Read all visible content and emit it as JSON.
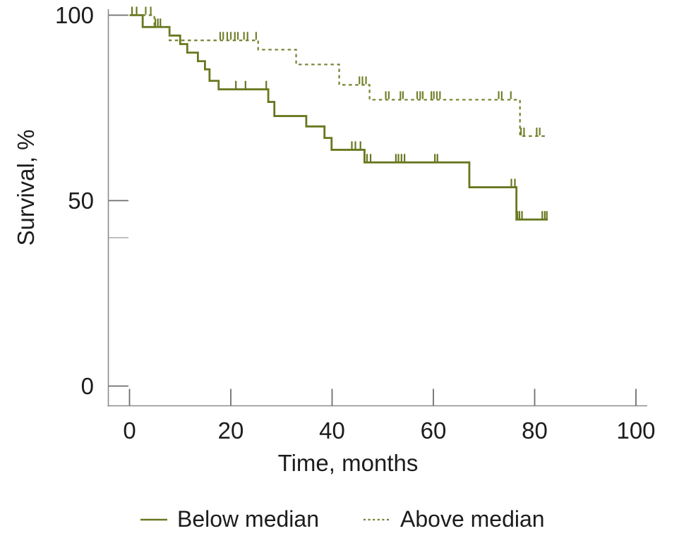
{
  "chart_data": {
    "type": "line",
    "subtype": "kaplan-meier-step-curves",
    "title": "",
    "xlabel": "Time, months",
    "ylabel": "Survival, %",
    "xlim": [
      0,
      100
    ],
    "ylim": [
      0,
      100
    ],
    "xticks": [
      0,
      20,
      40,
      60,
      80,
      100
    ],
    "yticks": [
      0,
      50,
      100
    ],
    "minor_yticks": [
      40
    ],
    "grid": false,
    "legend_position": "bottom",
    "colors": {
      "solid_curve": "#67781f",
      "dashed_curve": "#72812c",
      "axis_line": "#8a8a8a",
      "major_tick": "#6e6e6e",
      "minor_tick": "#b5b5b5",
      "text": "#1c1c1c"
    },
    "series": [
      {
        "name": "Below median",
        "style": "solid",
        "color": "#67781f",
        "steps": [
          [
            0,
            100
          ],
          [
            2.6,
            96.8
          ],
          [
            7.9,
            94.5
          ],
          [
            10.0,
            92.2
          ],
          [
            11.4,
            89.9
          ],
          [
            13.5,
            87.6
          ],
          [
            14.9,
            85.4
          ],
          [
            15.8,
            82.3
          ],
          [
            17.6,
            80.0
          ],
          [
            27.4,
            76.6
          ],
          [
            28.6,
            72.8
          ],
          [
            34.9,
            70.0
          ],
          [
            38.5,
            66.9
          ],
          [
            39.9,
            63.7
          ],
          [
            46.4,
            60.3
          ],
          [
            67.1,
            53.6
          ],
          [
            76.4,
            44.9
          ]
        ],
        "end_time": 82.6,
        "censors": [
          [
            0.5,
            100
          ],
          [
            1.4,
            100
          ],
          [
            5.1,
            96.8
          ],
          [
            5.6,
            96.8
          ],
          [
            6.1,
            96.8
          ],
          [
            21.0,
            80.0
          ],
          [
            22.9,
            80.0
          ],
          [
            27.0,
            80.0
          ],
          [
            43.9,
            63.7
          ],
          [
            44.6,
            63.7
          ],
          [
            45.6,
            63.7
          ],
          [
            46.9,
            60.3
          ],
          [
            47.6,
            60.3
          ],
          [
            52.6,
            60.3
          ],
          [
            53.1,
            60.3
          ],
          [
            53.7,
            60.3
          ],
          [
            54.3,
            60.3
          ],
          [
            60.3,
            60.3
          ],
          [
            60.8,
            60.3
          ],
          [
            75.4,
            53.6
          ],
          [
            76.1,
            53.6
          ],
          [
            76.6,
            44.9
          ],
          [
            77.0,
            44.9
          ],
          [
            77.5,
            44.9
          ],
          [
            81.5,
            44.9
          ],
          [
            82.0,
            44.9
          ],
          [
            82.4,
            44.9
          ]
        ]
      },
      {
        "name": "Above median",
        "style": "dashed",
        "color": "#72812c",
        "steps": [
          [
            0,
            100
          ],
          [
            4.9,
            96.8
          ],
          [
            7.9,
            93.2
          ],
          [
            25.4,
            90.7
          ],
          [
            32.9,
            86.7
          ],
          [
            41.4,
            81.2
          ],
          [
            47.4,
            77.2
          ],
          [
            77.1,
            67.4
          ]
        ],
        "end_time": 82.4,
        "censors": [
          [
            3.2,
            100
          ],
          [
            4.2,
            100
          ],
          [
            17.9,
            93.2
          ],
          [
            18.5,
            93.2
          ],
          [
            19.3,
            93.2
          ],
          [
            20.0,
            93.2
          ],
          [
            20.8,
            93.2
          ],
          [
            21.4,
            93.2
          ],
          [
            22.6,
            93.2
          ],
          [
            23.3,
            93.2
          ],
          [
            25.0,
            93.2
          ],
          [
            45.4,
            81.2
          ],
          [
            46.0,
            81.2
          ],
          [
            46.7,
            81.2
          ],
          [
            50.6,
            77.2
          ],
          [
            51.2,
            77.2
          ],
          [
            53.5,
            77.2
          ],
          [
            54.0,
            77.2
          ],
          [
            56.8,
            77.2
          ],
          [
            57.4,
            77.2
          ],
          [
            57.9,
            77.2
          ],
          [
            59.6,
            77.2
          ],
          [
            60.1,
            77.2
          ],
          [
            60.7,
            77.2
          ],
          [
            61.3,
            77.2
          ],
          [
            72.9,
            77.2
          ],
          [
            73.5,
            77.2
          ],
          [
            75.3,
            77.2
          ],
          [
            77.3,
            67.4
          ],
          [
            77.9,
            67.4
          ],
          [
            80.4,
            67.4
          ],
          [
            81.0,
            67.4
          ]
        ]
      }
    ],
    "legend": {
      "items": [
        "Below median",
        "Above median"
      ]
    }
  }
}
